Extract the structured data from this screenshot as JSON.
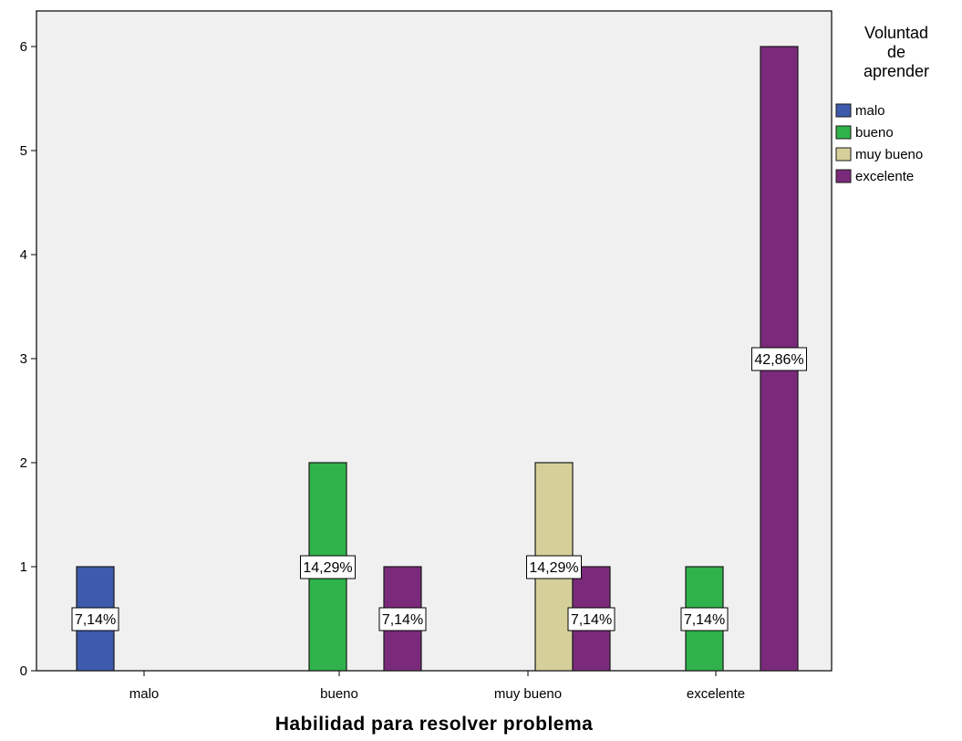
{
  "chart_data": {
    "type": "bar",
    "xlabel": "Habilidad para resolver problema",
    "ylabel": "",
    "categories": [
      "malo",
      "bueno",
      "muy bueno",
      "excelente"
    ],
    "ylim": [
      0,
      6.3
    ],
    "yticks": [
      0,
      1,
      2,
      3,
      4,
      5,
      6
    ],
    "grid": false,
    "legend": {
      "title_lines": [
        "Voluntad",
        "de",
        "aprender"
      ],
      "position": "right"
    },
    "series": [
      {
        "name": "malo",
        "color": "#3e5aac",
        "values": [
          1,
          null,
          null,
          null
        ],
        "labels": [
          "7,14%",
          null,
          null,
          null
        ]
      },
      {
        "name": "bueno",
        "color": "#2fb34a",
        "values": [
          null,
          2,
          null,
          1
        ],
        "labels": [
          null,
          "14,29%",
          null,
          "7,14%"
        ]
      },
      {
        "name": "muy bueno",
        "color": "#d5cf9a",
        "values": [
          null,
          null,
          2,
          null
        ],
        "labels": [
          null,
          null,
          "14,29%",
          null
        ]
      },
      {
        "name": "excelente",
        "color": "#7b2a7b",
        "values": [
          null,
          1,
          1,
          6
        ],
        "labels": [
          null,
          "7,14%",
          "7,14%",
          "42,86%"
        ]
      }
    ]
  }
}
